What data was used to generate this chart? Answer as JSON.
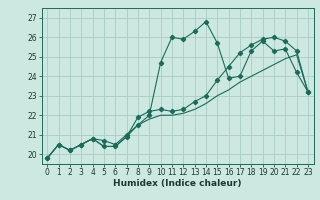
{
  "title": "",
  "xlabel": "Humidex (Indice chaleur)",
  "xlim": [
    -0.5,
    23.5
  ],
  "ylim": [
    19.5,
    27.5
  ],
  "yticks": [
    20,
    21,
    22,
    23,
    24,
    25,
    26,
    27
  ],
  "xticks": [
    0,
    1,
    2,
    3,
    4,
    5,
    6,
    7,
    8,
    9,
    10,
    11,
    12,
    13,
    14,
    15,
    16,
    17,
    18,
    19,
    20,
    21,
    22,
    23
  ],
  "bg_color": "#cce8e0",
  "grid_color": "#aaccc4",
  "line_color": "#1a6b5a",
  "line1_x": [
    0,
    1,
    2,
    3,
    4,
    5,
    6,
    7,
    8,
    9,
    10,
    11,
    12,
    13,
    14,
    15,
    16,
    17,
    18,
    19,
    20,
    21,
    22,
    23
  ],
  "line1_y": [
    19.8,
    20.5,
    20.2,
    20.5,
    20.8,
    20.7,
    20.5,
    21.0,
    21.5,
    22.0,
    24.7,
    26.0,
    25.9,
    26.3,
    26.8,
    25.7,
    23.9,
    24.0,
    25.3,
    25.8,
    25.3,
    25.4,
    24.2,
    23.2
  ],
  "line2_x": [
    0,
    1,
    2,
    3,
    4,
    5,
    6,
    7,
    8,
    9,
    10,
    11,
    12,
    13,
    14,
    15,
    16,
    17,
    18,
    19,
    20,
    21,
    22,
    23
  ],
  "line2_y": [
    19.8,
    20.5,
    20.2,
    20.5,
    20.8,
    20.4,
    20.4,
    20.9,
    21.9,
    22.2,
    22.3,
    22.2,
    22.3,
    22.7,
    23.0,
    23.8,
    24.5,
    25.2,
    25.6,
    25.9,
    26.0,
    25.8,
    25.3,
    23.2
  ],
  "line3_x": [
    0,
    1,
    2,
    3,
    4,
    5,
    6,
    7,
    8,
    9,
    10,
    11,
    12,
    13,
    14,
    15,
    16,
    17,
    18,
    19,
    20,
    21,
    22,
    23
  ],
  "line3_y": [
    19.8,
    20.5,
    20.2,
    20.5,
    20.8,
    20.4,
    20.4,
    20.9,
    21.5,
    21.8,
    22.0,
    22.0,
    22.1,
    22.3,
    22.6,
    23.0,
    23.3,
    23.7,
    24.0,
    24.3,
    24.6,
    24.9,
    25.1,
    23.2
  ],
  "tick_fontsize": 5.5,
  "xlabel_fontsize": 6.5
}
